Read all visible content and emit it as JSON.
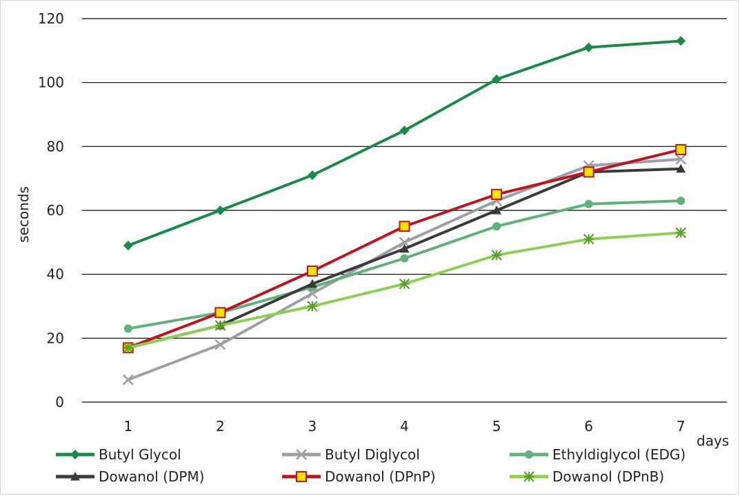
{
  "chart_data": {
    "type": "line",
    "title": "",
    "xlabel": "days",
    "ylabel": "seconds",
    "ylim": [
      0,
      120
    ],
    "yticks": [
      0,
      20,
      40,
      60,
      80,
      100,
      120
    ],
    "grid": "horizontal",
    "legend_position": "bottom",
    "x": [
      1,
      2,
      3,
      4,
      5,
      6,
      7
    ],
    "series": [
      {
        "name": "Butyl Glycol",
        "values": [
          49,
          60,
          71,
          85,
          101,
          111,
          113
        ],
        "color": "#1a8a4a",
        "marker": "diamond"
      },
      {
        "name": "Butyl Diglycol",
        "values": [
          7,
          18,
          34,
          50,
          63,
          74,
          76
        ],
        "color": "#9aa0a6",
        "marker": "x"
      },
      {
        "name": "Ethyldiglycol (EDG)",
        "values": [
          23,
          28,
          36,
          45,
          55,
          62,
          63
        ],
        "color": "#5fb27a",
        "marker": "circle"
      },
      {
        "name": "Dowanol (DPM)",
        "values": [
          17,
          24,
          37,
          48,
          60,
          72,
          73
        ],
        "color": "#3a3a3a",
        "marker": "triangle"
      },
      {
        "name": "Dowanol (DPnP)",
        "values": [
          17,
          28,
          41,
          55,
          65,
          72,
          79
        ],
        "color": "#c0141c",
        "marker": "square"
      },
      {
        "name": "Dowanol (DPnB)",
        "values": [
          17,
          24,
          30,
          37,
          46,
          51,
          53
        ],
        "color": "#8cd050",
        "marker": "star"
      }
    ]
  }
}
